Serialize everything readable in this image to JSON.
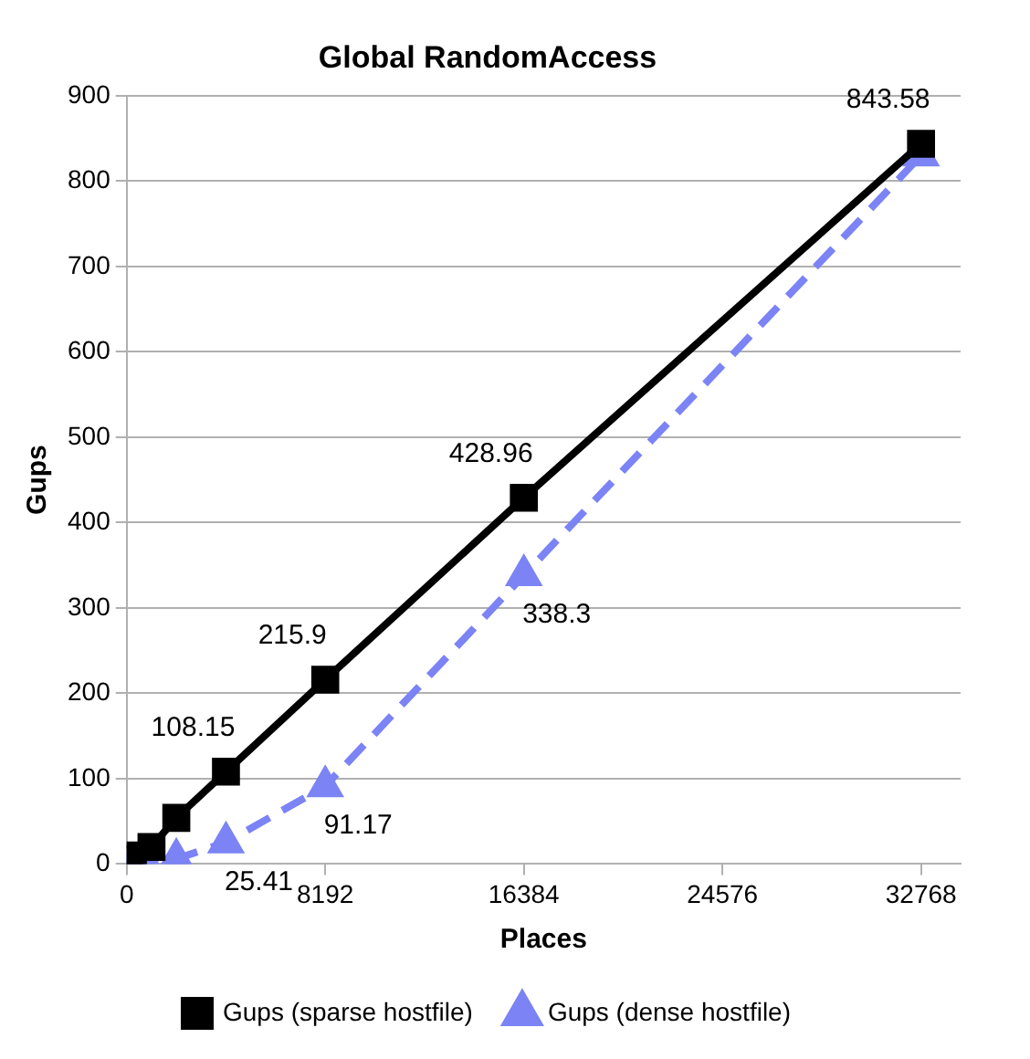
{
  "chart_data": {
    "type": "line",
    "title": "Global RandomAccess",
    "xlabel": "Places",
    "ylabel": "Gups",
    "xlim": [
      0,
      34400
    ],
    "xticks": [
      0,
      8192,
      16384,
      24576,
      32768
    ],
    "ylim": [
      0,
      900
    ],
    "yticks": [
      0,
      100,
      200,
      300,
      400,
      500,
      600,
      700,
      800,
      900
    ],
    "grid": "y",
    "legend": "bottom",
    "series": [
      {
        "name": "Gups (dense hostfile)",
        "color": "#7b83f5",
        "marker": "triangle",
        "line_style": "dashed",
        "x": [
          256,
          2048,
          4096,
          8192,
          16384,
          32768
        ],
        "values": [
          1,
          6,
          25.41,
          91.17,
          338.3,
          830
        ],
        "value_labels": [
          null,
          null,
          "25.41",
          "91.17",
          "338.3",
          null
        ]
      },
      {
        "name": "Gups (sparse hostfile)",
        "color": "#000000",
        "marker": "square",
        "line_style": "solid",
        "x": [
          256,
          1024,
          2048,
          4096,
          8192,
          16384,
          32768
        ],
        "values": [
          10,
          20,
          54,
          108.15,
          215.9,
          428.96,
          843.58
        ],
        "value_labels": [
          null,
          null,
          null,
          "108.15",
          "215.9",
          "428.96",
          "843.58"
        ]
      }
    ]
  }
}
